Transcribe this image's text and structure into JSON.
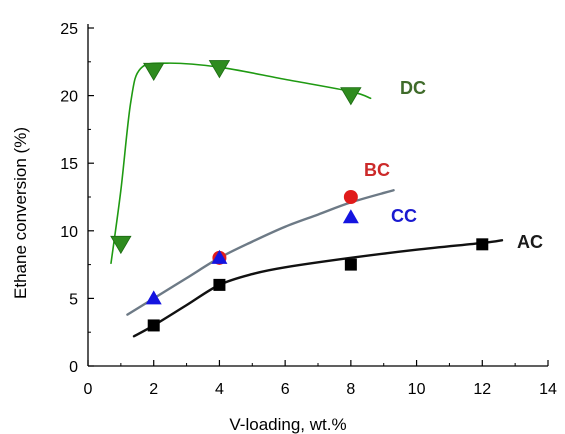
{
  "chart_data": {
    "type": "scatter",
    "xlabel": "V-loading, wt.%",
    "ylabel": "Ethane conversion (%)",
    "xlim": [
      0,
      14
    ],
    "ylim": [
      0,
      25
    ],
    "x_ticks": [
      "0",
      "2",
      "4",
      "6",
      "8",
      "10",
      "12",
      "14"
    ],
    "y_ticks": [
      "0",
      "5",
      "10",
      "15",
      "20",
      "25"
    ],
    "grid": false,
    "series": [
      {
        "name": "DC",
        "color": "#2e8b1e",
        "label_color": "#3f6b2a",
        "marker": "triangle-down",
        "points": [
          [
            1.0,
            9.0
          ],
          [
            2.0,
            21.8
          ],
          [
            4.0,
            22.0
          ],
          [
            8.0,
            20.0
          ]
        ],
        "curve": [
          [
            0.7,
            7.6
          ],
          [
            1.0,
            13.0
          ],
          [
            1.3,
            19.5
          ],
          [
            1.6,
            22.0
          ],
          [
            2.4,
            22.4
          ],
          [
            4.0,
            22.1
          ],
          [
            6.0,
            21.2
          ],
          [
            8.0,
            20.3
          ],
          [
            8.6,
            19.8
          ]
        ]
      },
      {
        "name": "BC",
        "color": "#e01b1b",
        "label_color": "#cc2a2a",
        "marker": "circle",
        "points": [
          [
            4.0,
            8.0
          ],
          [
            8.0,
            12.5
          ]
        ],
        "curve": [
          [
            1.2,
            3.8
          ],
          [
            2.0,
            5.0
          ],
          [
            3.0,
            6.5
          ],
          [
            4.0,
            8.0
          ],
          [
            5.0,
            9.2
          ],
          [
            6.0,
            10.3
          ],
          [
            7.0,
            11.2
          ],
          [
            8.0,
            12.1
          ],
          [
            9.3,
            13.0
          ]
        ]
      },
      {
        "name": "CC",
        "color": "#1414e0",
        "label_color": "#1a1ad0",
        "marker": "triangle-up",
        "points": [
          [
            2.0,
            5.0
          ],
          [
            4.0,
            8.0
          ],
          [
            8.0,
            11.0
          ]
        ],
        "curve": []
      },
      {
        "name": "AC",
        "color": "#000000",
        "label_color": "#1a1a1a",
        "marker": "square",
        "points": [
          [
            2.0,
            3.0
          ],
          [
            4.0,
            6.0
          ],
          [
            8.0,
            7.5
          ],
          [
            12.0,
            9.0
          ]
        ],
        "curve": [
          [
            1.4,
            2.2
          ],
          [
            2.0,
            3.0
          ],
          [
            3.0,
            4.5
          ],
          [
            4.0,
            6.0
          ],
          [
            5.0,
            6.8
          ],
          [
            6.0,
            7.3
          ],
          [
            8.0,
            8.0
          ],
          [
            10.0,
            8.6
          ],
          [
            12.0,
            9.1
          ],
          [
            12.6,
            9.3
          ]
        ]
      }
    ]
  }
}
